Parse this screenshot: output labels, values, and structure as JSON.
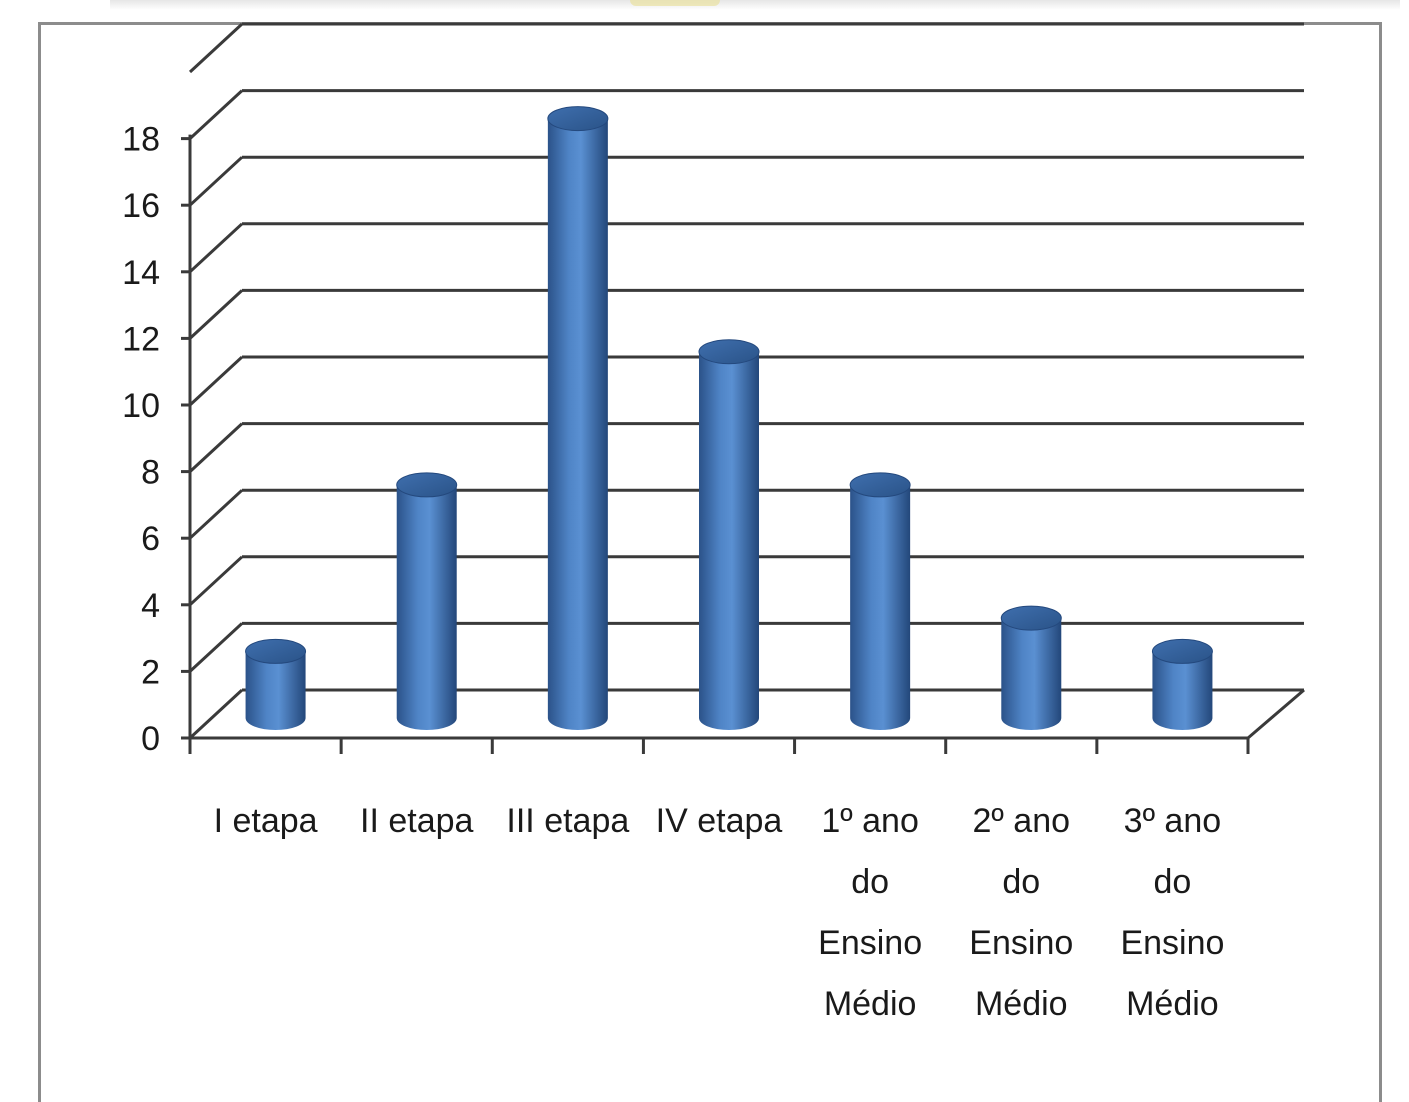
{
  "chart_data": {
    "type": "bar",
    "style": "3d-cylinder",
    "title": "",
    "xlabel": "",
    "ylabel": "",
    "ylim": [
      0,
      18
    ],
    "ytick_step": 2,
    "grid": true,
    "legend": "none",
    "bar_color": "#3f6fae",
    "categories": [
      [
        "I etapa"
      ],
      [
        "II etapa"
      ],
      [
        "III etapa"
      ],
      [
        "IV etapa"
      ],
      [
        "1º ano",
        "do",
        "Ensino",
        "Médio"
      ],
      [
        "2º ano",
        "do",
        "Ensino",
        "Médio"
      ],
      [
        "3º ano",
        "do",
        "Ensino",
        "Médio"
      ]
    ],
    "values": [
      2,
      7,
      18,
      11,
      7,
      3,
      2
    ]
  }
}
